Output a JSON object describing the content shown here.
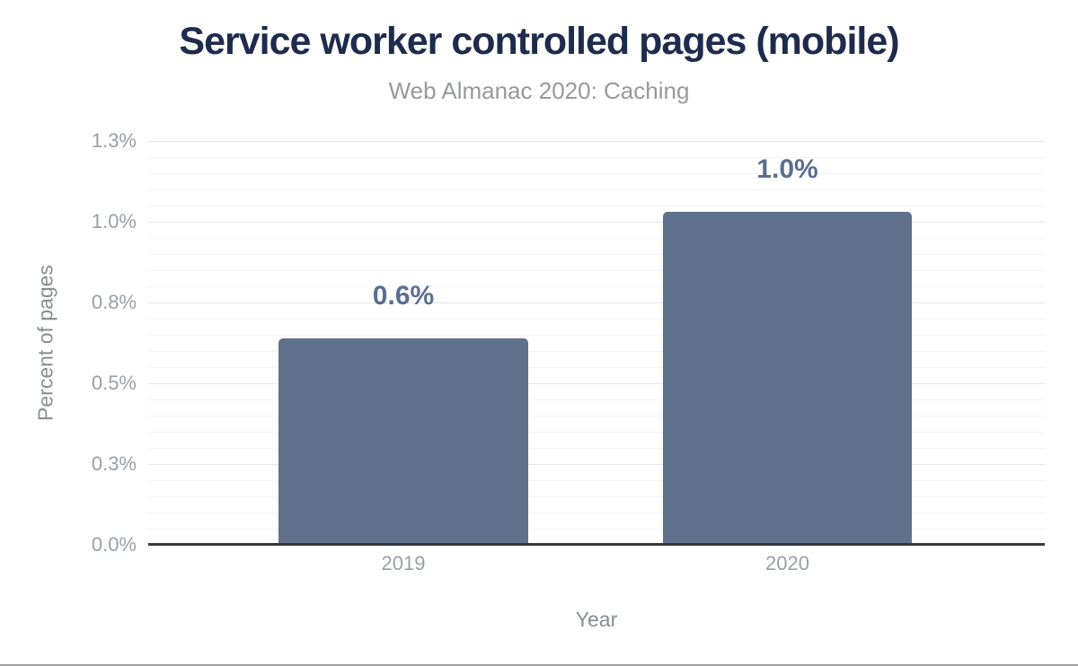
{
  "chart_data": {
    "type": "bar",
    "title": "Service worker controlled pages (mobile)",
    "subtitle": "Web Almanac 2020: Caching",
    "categories": [
      "2019",
      "2020"
    ],
    "values": [
      0.64,
      1.03
    ],
    "value_labels": [
      "0.6%",
      "1.0%"
    ],
    "xlabel": "Year",
    "ylabel": "Percent of pages",
    "ylim": [
      0,
      1.25
    ],
    "y_ticks": [
      {
        "value": 1.25,
        "label": "1.3%"
      },
      {
        "value": 1.0,
        "label": "1.0%"
      },
      {
        "value": 0.75,
        "label": "0.8%"
      },
      {
        "value": 0.5,
        "label": "0.5%"
      },
      {
        "value": 0.25,
        "label": "0.3%"
      },
      {
        "value": 0.0,
        "label": "0.0%"
      }
    ],
    "minor_tick_step": 0.05,
    "major_tick_step": 0.25,
    "grid": true,
    "legend": "none",
    "colors": {
      "bar": "#61708b",
      "value_label": "#5b6e90",
      "title": "#1e2b4d",
      "subtitle": "#97999c",
      "tick": "#9aa0a6",
      "axis_title": "#878d93",
      "major_grid": "#e6e6e6",
      "minor_grid": "#f4f4f4",
      "axis_line": "#37393c",
      "bottom_rule": "#9e9e9e"
    }
  }
}
